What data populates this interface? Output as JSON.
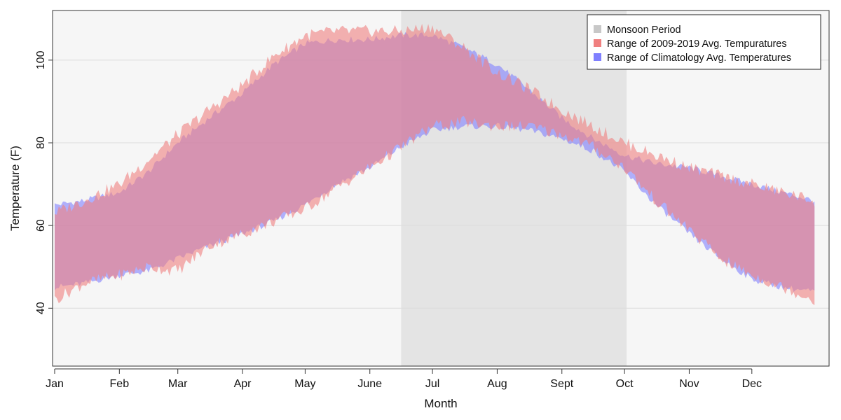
{
  "chart_data": {
    "type": "area",
    "title": "",
    "xlabel": "Month",
    "ylabel": "Temperature (F)",
    "xlim": [
      0,
      372
    ],
    "ylim": [
      26,
      112
    ],
    "month_ticks": [
      {
        "label": "Jan",
        "day": 1
      },
      {
        "label": "Feb",
        "day": 32
      },
      {
        "label": "Mar",
        "day": 60
      },
      {
        "label": "Apr",
        "day": 91
      },
      {
        "label": "May",
        "day": 121
      },
      {
        "label": "June",
        "day": 152
      },
      {
        "label": "Jul",
        "day": 182
      },
      {
        "label": "Aug",
        "day": 213
      },
      {
        "label": "Sept",
        "day": 244
      },
      {
        "label": "Oct",
        "day": 274
      },
      {
        "label": "Nov",
        "day": 305
      },
      {
        "label": "Dec",
        "day": 335
      }
    ],
    "y_ticks": [
      40,
      60,
      80,
      100
    ],
    "monsoon": {
      "label": "Monsoon Period",
      "start_day": 167,
      "end_day": 275,
      "color": "#e4e4e4",
      "legend_color": "#c8c8c8"
    },
    "series": [
      {
        "name": "Range of Climatology Avg. Temperatures",
        "color": "#8080ff",
        "opacity": 0.6,
        "days": [
          1,
          15,
          32,
          46,
          60,
          75,
          91,
          106,
          121,
          136,
          152,
          167,
          182,
          197,
          213,
          228,
          244,
          259,
          274,
          289,
          305,
          320,
          335,
          350,
          365
        ],
        "low": [
          45,
          46,
          48,
          49,
          52,
          55,
          58,
          61,
          65,
          70,
          74,
          79,
          83,
          84,
          84,
          83,
          81,
          78,
          73,
          65,
          58,
          52,
          47,
          45,
          44
        ],
        "high": [
          65,
          66,
          68,
          73,
          80,
          86,
          92,
          99,
          104,
          105,
          105,
          106,
          106,
          103,
          99,
          93,
          86,
          81,
          77,
          75,
          74,
          72,
          70,
          68,
          66
        ]
      },
      {
        "name": "Range of 2009-2019 Avg. Tempuratures",
        "color": "#f08080",
        "opacity": 0.6,
        "days": [
          1,
          15,
          32,
          46,
          60,
          75,
          91,
          106,
          121,
          136,
          152,
          167,
          182,
          197,
          213,
          228,
          244,
          259,
          274,
          289,
          305,
          320,
          335,
          350,
          365
        ],
        "low": [
          42,
          46,
          48,
          50,
          49,
          55,
          58,
          61,
          64,
          69,
          74,
          79,
          84,
          85,
          84,
          84,
          82,
          79,
          74,
          66,
          59,
          52,
          48,
          45,
          42
        ],
        "high": [
          63,
          66,
          70,
          76,
          82,
          88,
          94,
          101,
          106,
          107,
          107,
          107,
          108,
          103,
          97,
          93,
          88,
          84,
          80,
          77,
          74,
          72,
          70,
          68,
          66
        ]
      }
    ],
    "legend": {
      "position": "top-right",
      "entries": [
        {
          "label": "Monsoon Period",
          "color": "#c8c8c8"
        },
        {
          "label": "Range of 2009-2019 Avg. Tempuratures",
          "color": "#f08080"
        },
        {
          "label": "Range of Climatology Avg. Temperatures",
          "color": "#8080ff"
        }
      ]
    }
  }
}
